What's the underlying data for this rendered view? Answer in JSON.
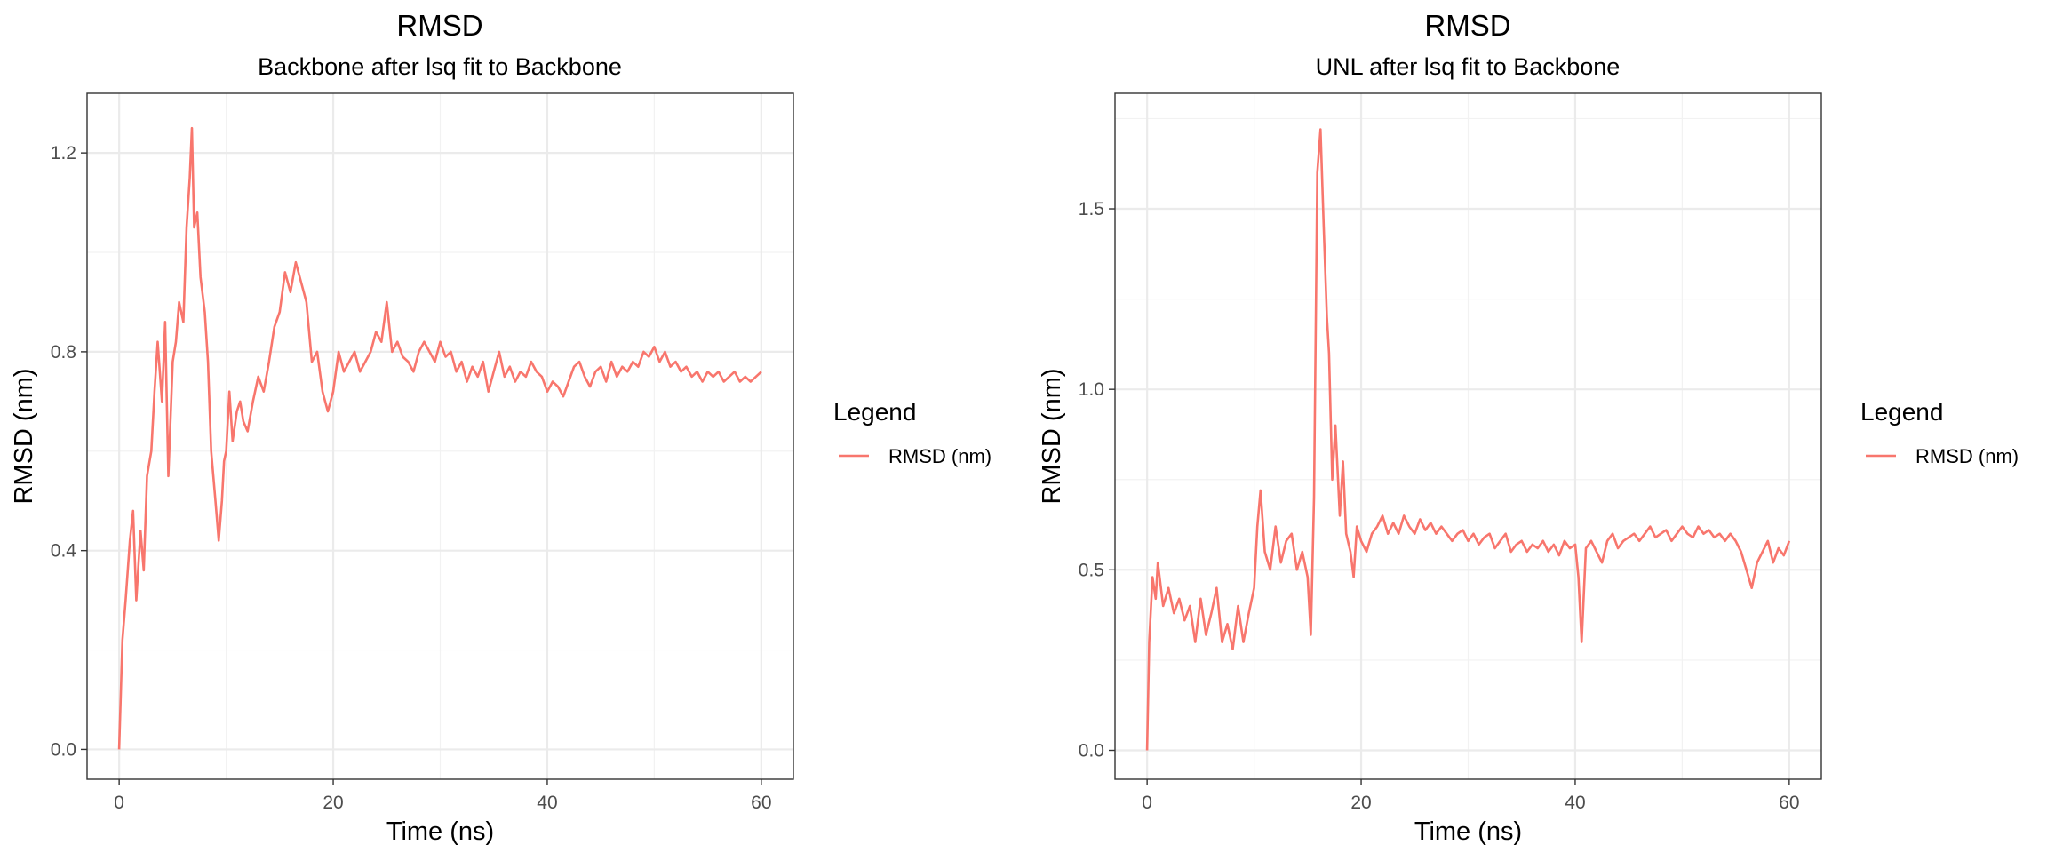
{
  "chart_data": [
    {
      "type": "line",
      "title": "RMSD",
      "subtitle": "Backbone after lsq fit to Backbone",
      "xlabel": "Time (ns)",
      "ylabel": "RMSD (nm)",
      "xlim": [
        -3,
        63
      ],
      "ylim": [
        -0.06,
        1.32
      ],
      "x_ticks": [
        0,
        20,
        40,
        60
      ],
      "x_tick_labels": [
        "0",
        "20",
        "40",
        "60"
      ],
      "y_ticks": [
        0.0,
        0.4,
        0.8,
        1.2
      ],
      "y_tick_labels": [
        "0.0",
        "0.4",
        "0.8",
        "1.2"
      ],
      "grid": true,
      "legend": {
        "title": "Legend",
        "position": "right",
        "entries": [
          "RMSD (nm)"
        ]
      },
      "series": [
        {
          "name": "RMSD (nm)",
          "color": "#F8766D",
          "x": [
            0,
            0.3,
            0.6,
            1,
            1.3,
            1.6,
            2,
            2.3,
            2.6,
            3,
            3.3,
            3.6,
            4,
            4.3,
            4.6,
            5,
            5.3,
            5.6,
            6,
            6.3,
            6.6,
            6.8,
            7,
            7.3,
            7.6,
            8,
            8.3,
            8.6,
            9,
            9.3,
            9.6,
            9.8,
            10,
            10.3,
            10.6,
            11,
            11.3,
            11.6,
            12,
            12.5,
            13,
            13.5,
            14,
            14.5,
            15,
            15.5,
            16,
            16.5,
            17,
            17.5,
            18,
            18.5,
            19,
            19.5,
            20,
            20.5,
            21,
            21.5,
            22,
            22.5,
            23,
            23.5,
            24,
            24.5,
            25,
            25.5,
            26,
            26.5,
            27,
            27.5,
            28,
            28.5,
            29,
            29.5,
            30,
            30.5,
            31,
            31.5,
            32,
            32.5,
            33,
            33.5,
            34,
            34.5,
            35,
            35.5,
            36,
            36.5,
            37,
            37.5,
            38,
            38.5,
            39,
            39.5,
            40,
            40.5,
            41,
            41.5,
            42,
            42.5,
            43,
            43.5,
            44,
            44.5,
            45,
            45.5,
            46,
            46.5,
            47,
            47.5,
            48,
            48.5,
            49,
            49.5,
            50,
            50.5,
            51,
            51.5,
            52,
            52.5,
            53,
            53.5,
            54,
            54.5,
            55,
            55.5,
            56,
            56.5,
            57,
            57.5,
            58,
            58.5,
            59,
            59.5,
            60
          ],
          "y": [
            0.0,
            0.22,
            0.3,
            0.42,
            0.48,
            0.3,
            0.44,
            0.36,
            0.55,
            0.6,
            0.72,
            0.82,
            0.7,
            0.86,
            0.55,
            0.78,
            0.82,
            0.9,
            0.86,
            1.05,
            1.15,
            1.25,
            1.05,
            1.08,
            0.95,
            0.88,
            0.78,
            0.6,
            0.5,
            0.42,
            0.5,
            0.58,
            0.6,
            0.72,
            0.62,
            0.68,
            0.7,
            0.66,
            0.64,
            0.7,
            0.75,
            0.72,
            0.78,
            0.85,
            0.88,
            0.96,
            0.92,
            0.98,
            0.94,
            0.9,
            0.78,
            0.8,
            0.72,
            0.68,
            0.72,
            0.8,
            0.76,
            0.78,
            0.8,
            0.76,
            0.78,
            0.8,
            0.84,
            0.82,
            0.9,
            0.8,
            0.82,
            0.79,
            0.78,
            0.76,
            0.8,
            0.82,
            0.8,
            0.78,
            0.82,
            0.79,
            0.8,
            0.76,
            0.78,
            0.74,
            0.77,
            0.75,
            0.78,
            0.72,
            0.76,
            0.8,
            0.75,
            0.77,
            0.74,
            0.76,
            0.75,
            0.78,
            0.76,
            0.75,
            0.72,
            0.74,
            0.73,
            0.71,
            0.74,
            0.77,
            0.78,
            0.75,
            0.73,
            0.76,
            0.77,
            0.74,
            0.78,
            0.75,
            0.77,
            0.76,
            0.78,
            0.77,
            0.8,
            0.79,
            0.81,
            0.78,
            0.8,
            0.77,
            0.78,
            0.76,
            0.77,
            0.75,
            0.76,
            0.74,
            0.76,
            0.75,
            0.76,
            0.74,
            0.75,
            0.76,
            0.74,
            0.75,
            0.74,
            0.75,
            0.76
          ]
        }
      ]
    },
    {
      "type": "line",
      "title": "RMSD",
      "subtitle": "UNL after lsq fit to Backbone",
      "xlabel": "Time (ns)",
      "ylabel": "RMSD (nm)",
      "xlim": [
        -3,
        63
      ],
      "ylim": [
        -0.08,
        1.82
      ],
      "x_ticks": [
        0,
        20,
        40,
        60
      ],
      "x_tick_labels": [
        "0",
        "20",
        "40",
        "60"
      ],
      "y_ticks": [
        0.0,
        0.5,
        1.0,
        1.5
      ],
      "y_tick_labels": [
        "0.0",
        "0.5",
        "1.0",
        "1.5"
      ],
      "grid": true,
      "legend": {
        "title": "Legend",
        "position": "right",
        "entries": [
          "RMSD (nm)"
        ]
      },
      "series": [
        {
          "name": "RMSD (nm)",
          "color": "#F8766D",
          "x": [
            0,
            0.2,
            0.5,
            0.8,
            1,
            1.5,
            2,
            2.5,
            3,
            3.5,
            4,
            4.5,
            5,
            5.5,
            6,
            6.5,
            7,
            7.5,
            8,
            8.5,
            9,
            9.5,
            10,
            10.3,
            10.6,
            11,
            11.5,
            12,
            12.5,
            13,
            13.5,
            14,
            14.5,
            15,
            15.3,
            15.6,
            15.9,
            16.2,
            16.5,
            16.8,
            17,
            17.3,
            17.6,
            18,
            18.3,
            18.6,
            19,
            19.3,
            19.6,
            20,
            20.5,
            21,
            21.5,
            22,
            22.5,
            23,
            23.5,
            24,
            24.5,
            25,
            25.5,
            26,
            26.5,
            27,
            27.5,
            28,
            28.5,
            29,
            29.5,
            30,
            30.5,
            31,
            31.5,
            32,
            32.5,
            33,
            33.5,
            34,
            34.5,
            35,
            35.5,
            36,
            36.5,
            37,
            37.5,
            38,
            38.5,
            39,
            39.5,
            40,
            40.3,
            40.6,
            41,
            41.5,
            42,
            42.5,
            43,
            43.5,
            44,
            44.5,
            45,
            45.5,
            46,
            46.5,
            47,
            47.5,
            48,
            48.5,
            49,
            49.5,
            50,
            50.5,
            51,
            51.5,
            52,
            52.5,
            53,
            53.5,
            54,
            54.5,
            55,
            55.5,
            56,
            56.5,
            57,
            57.5,
            58,
            58.5,
            59,
            59.5,
            60
          ],
          "y": [
            0.0,
            0.3,
            0.48,
            0.42,
            0.52,
            0.4,
            0.45,
            0.38,
            0.42,
            0.36,
            0.4,
            0.3,
            0.42,
            0.32,
            0.38,
            0.45,
            0.3,
            0.35,
            0.28,
            0.4,
            0.3,
            0.38,
            0.45,
            0.62,
            0.72,
            0.55,
            0.5,
            0.62,
            0.52,
            0.58,
            0.6,
            0.5,
            0.55,
            0.48,
            0.32,
            0.7,
            1.6,
            1.72,
            1.45,
            1.2,
            1.1,
            0.75,
            0.9,
            0.65,
            0.8,
            0.6,
            0.55,
            0.48,
            0.62,
            0.58,
            0.55,
            0.6,
            0.62,
            0.65,
            0.6,
            0.63,
            0.6,
            0.65,
            0.62,
            0.6,
            0.64,
            0.61,
            0.63,
            0.6,
            0.62,
            0.6,
            0.58,
            0.6,
            0.61,
            0.58,
            0.6,
            0.57,
            0.59,
            0.6,
            0.56,
            0.58,
            0.6,
            0.55,
            0.57,
            0.58,
            0.55,
            0.57,
            0.56,
            0.58,
            0.55,
            0.57,
            0.54,
            0.58,
            0.56,
            0.57,
            0.48,
            0.3,
            0.56,
            0.58,
            0.55,
            0.52,
            0.58,
            0.6,
            0.56,
            0.58,
            0.59,
            0.6,
            0.58,
            0.6,
            0.62,
            0.59,
            0.6,
            0.61,
            0.58,
            0.6,
            0.62,
            0.6,
            0.59,
            0.62,
            0.6,
            0.61,
            0.59,
            0.6,
            0.58,
            0.6,
            0.58,
            0.55,
            0.5,
            0.45,
            0.52,
            0.55,
            0.58,
            0.52,
            0.56,
            0.54,
            0.58
          ]
        }
      ]
    }
  ]
}
